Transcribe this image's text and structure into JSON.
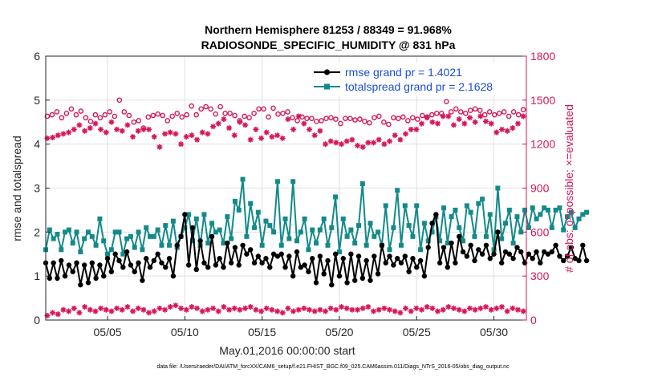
{
  "chart_data": {
    "type": "line",
    "title_line1": "Northern Hemisphere 81253 / 88349 = 91.968%",
    "title_line2": "RADIOSONDE_SPECIFIC_HUMIDITY @ 831 hPa",
    "xlabel": "May.01,2016 00:00:00 start",
    "ylabel_left": "rmse and totalspread",
    "ylabel_right": "# of obs: o=possible; ×=evaluated",
    "xlim": [
      1,
      32.1
    ],
    "ylim_left": [
      0,
      6
    ],
    "ylim_right": [
      0,
      1800
    ],
    "x_ticks": [
      5,
      10,
      15,
      20,
      25,
      30
    ],
    "x_tick_labels": [
      "05/05",
      "05/10",
      "05/15",
      "05/20",
      "05/25",
      "05/30"
    ],
    "y_ticks_left": [
      "0",
      "1",
      "2",
      "3",
      "4",
      "5",
      "6"
    ],
    "y_ticks_right": [
      "0",
      "300",
      "600",
      "900",
      "1200",
      "1500",
      "1800"
    ],
    "x_start": 1.0,
    "x_step": 0.25,
    "legend": [
      "rmse grand pr = 1.4021",
      "totalspread grand pr = 2.1628"
    ],
    "footnote": "data file: /Users/raeder/DAI/ATM_forcXX/CAM6_setup/f.e21.FHIST_BGC.f09_025.CAM6assim.011/Diags_NTrS_2016-05/obs_diag_output.nc",
    "colors": {
      "rmse": "#000000",
      "spread": "#138a8a",
      "counts": "#d6155a",
      "legend_text": "#1a4fd6",
      "right_axis": "#d6155a"
    },
    "series": [
      {
        "name": "rmse",
        "values": [
          1.3,
          0.95,
          1.3,
          0.95,
          1.35,
          1.0,
          1.25,
          1.1,
          1.3,
          0.8,
          1.25,
          0.85,
          1.3,
          0.95,
          1.25,
          1.0,
          1.4,
          1.1,
          1.5,
          1.35,
          1.2,
          1.55,
          1.25,
          1.1,
          1.3,
          0.9,
          1.4,
          1.2,
          1.35,
          1.5,
          1.3,
          1.2,
          1.4,
          1.0,
          1.7,
          1.9,
          2.4,
          1.25,
          2.1,
          1.15,
          1.8,
          1.3,
          1.2,
          1.9,
          1.25,
          1.4,
          1.2,
          1.75,
          1.3,
          1.65,
          1.25,
          1.7,
          1.5,
          1.6,
          1.3,
          1.45,
          1.3,
          1.4,
          1.2,
          1.5,
          1.45,
          1.5,
          1.2,
          1.45,
          1.0,
          1.55,
          1.2,
          1.25,
          1.1,
          1.4,
          0.85,
          1.45,
          1.05,
          1.35,
          0.8,
          1.5,
          1.0,
          1.4,
          0.85,
          1.5,
          0.9,
          1.45,
          0.95,
          1.35,
          0.9,
          1.45,
          1.05,
          1.7,
          1.3,
          1.45,
          1.25,
          1.4,
          1.3,
          1.45,
          1.1,
          1.4,
          1.2,
          1.35,
          1.0,
          1.65,
          2.2,
          2.4,
          1.3,
          1.65,
          1.2,
          1.75,
          1.3,
          1.9,
          1.55,
          1.45,
          1.7,
          1.35,
          1.6,
          1.5,
          1.7,
          1.4,
          1.5,
          2.0,
          1.3,
          1.55,
          1.5,
          1.4,
          1.65,
          1.55,
          1.3,
          1.5,
          1.4,
          1.55,
          1.3,
          1.55,
          1.5,
          1.55,
          1.7,
          1.45,
          1.35,
          1.45,
          1.65,
          1.4,
          1.35,
          1.7,
          1.35
        ]
      },
      {
        "name": "totalspread",
        "values": [
          1.6,
          2.05,
          1.85,
          1.95,
          1.6,
          2.0,
          2.05,
          1.75,
          2.0,
          1.55,
          1.85,
          2.0,
          1.9,
          1.7,
          2.3,
          1.8,
          1.5,
          1.6,
          2.0,
          2.0,
          1.5,
          1.85,
          1.9,
          1.65,
          2.0,
          1.6,
          2.1,
          1.9,
          1.9,
          2.05,
          1.7,
          2.15,
          1.7,
          2.25,
          1.65,
          1.9,
          2.1,
          2.4,
          1.8,
          2.3,
          1.7,
          2.4,
          1.75,
          2.2,
          2.0,
          2.05,
          1.75,
          2.35,
          1.85,
          2.7,
          2.5,
          3.2,
          1.9,
          2.65,
          2.1,
          2.45,
          1.7,
          2.25,
          2.15,
          2.0,
          3.15,
          1.7,
          2.3,
          1.85,
          3.15,
          1.8,
          2.0,
          2.3,
          1.6,
          2.05,
          1.75,
          2.05,
          2.3,
          1.7,
          2.1,
          2.8,
          1.55,
          2.3,
          1.9,
          2.05,
          1.75,
          2.15,
          3.1,
          1.7,
          2.2,
          1.9,
          2.0,
          1.7,
          2.6,
          1.6,
          2.1,
          2.95,
          1.7,
          2.6,
          2.15,
          1.9,
          2.6,
          1.6,
          2.2,
          1.8,
          2.0,
          2.35,
          1.8,
          2.55,
          1.75,
          2.35,
          2.5,
          2.1,
          1.8,
          2.6,
          2.45,
          1.9,
          2.65,
          2.75,
          1.9,
          2.4,
          1.6,
          3.0,
          1.85,
          2.2,
          2.5,
          1.75,
          2.35,
          2.0,
          2.5,
          2.1,
          2.55,
          2.3,
          2.4,
          2.55,
          2.5,
          2.1,
          2.5,
          2.55,
          2.05,
          2.35,
          2.45,
          2.1,
          2.3,
          2.4,
          2.45
        ]
      },
      {
        "name": "possible",
        "values": [
          1390,
          1400,
          1420,
          1380,
          1410,
          1440,
          1400,
          1425,
          1380,
          1355,
          1400,
          1380,
          1400,
          1420,
          1390,
          1500,
          1420,
          1395,
          1350,
          1360,
          1310,
          1385,
          1395,
          1405,
          1395,
          1360,
          1390,
          1410,
          1385,
          1400,
          1460,
          1400,
          1440,
          1455,
          1440,
          1405,
          1455,
          1410,
          1410,
          1395,
          1360,
          1390,
          1380,
          1410,
          1440,
          1440,
          1385,
          1445,
          1405,
          1410,
          1420,
          1380,
          1360,
          1385,
          1375,
          1375,
          1355,
          1360,
          1375,
          1380,
          1370,
          1340,
          1375,
          1375,
          1365,
          1370,
          1355,
          1345,
          1380,
          1390,
          1350,
          1335,
          1380,
          1375,
          1385,
          1360,
          1380,
          1370,
          1395,
          1385,
          1400,
          1410,
          1410,
          1490,
          1420,
          1440,
          1420,
          1410,
          1430,
          1440,
          1430,
          1400,
          1420,
          1400,
          1410,
          1420,
          1390,
          1420,
          1400,
          1435
        ]
      },
      {
        "name": "evaluated",
        "values": [
          1240,
          1245,
          1260,
          1270,
          1280,
          1300,
          1330,
          1290,
          1310,
          1340,
          1300,
          1280,
          1350,
          1300,
          1290,
          1330,
          1250,
          1290,
          1300,
          1300,
          1250,
          1180,
          1270,
          1280,
          1270,
          1200,
          1250,
          1260,
          1230,
          1280,
          1270,
          1320,
          1340,
          1370,
          1310,
          1260,
          1350,
          1330,
          1230,
          1300,
          1240,
          1280,
          1250,
          1260,
          1240,
          1370,
          1300,
          1390,
          1340,
          1300,
          1260,
          1290,
          1200,
          1220,
          1210,
          1200,
          1220,
          1230,
          1190,
          1180,
          1210,
          1210,
          1230,
          1200,
          1220,
          1260,
          1230,
          1270,
          1300,
          1300,
          1340,
          1380,
          1350,
          1340,
          1390,
          1390,
          1330,
          1370,
          1340,
          1380,
          1350,
          1390,
          1355,
          1340,
          1280,
          1300,
          1290,
          1310,
          1340,
          1390
        ]
      },
      {
        "name": "low_counts",
        "values": [
          30,
          50,
          40,
          70,
          60,
          80,
          50,
          90,
          70,
          60,
          80,
          70,
          60,
          80,
          70,
          90,
          60,
          80,
          70,
          50,
          60,
          80,
          70,
          90,
          100,
          80,
          70,
          90,
          80,
          60,
          70,
          80,
          60,
          90,
          70,
          80,
          70,
          80,
          90,
          70,
          60,
          80,
          70,
          60,
          50,
          80,
          60,
          70,
          80,
          70,
          60,
          70,
          60,
          80,
          70,
          90,
          80,
          70,
          70,
          80,
          90,
          60,
          70,
          80,
          70,
          60,
          50,
          80,
          60,
          80,
          70,
          90,
          80,
          60,
          70,
          90,
          80,
          70,
          60,
          80,
          70,
          80,
          90,
          70,
          80,
          90,
          60,
          80,
          70,
          60
        ]
      }
    ]
  }
}
